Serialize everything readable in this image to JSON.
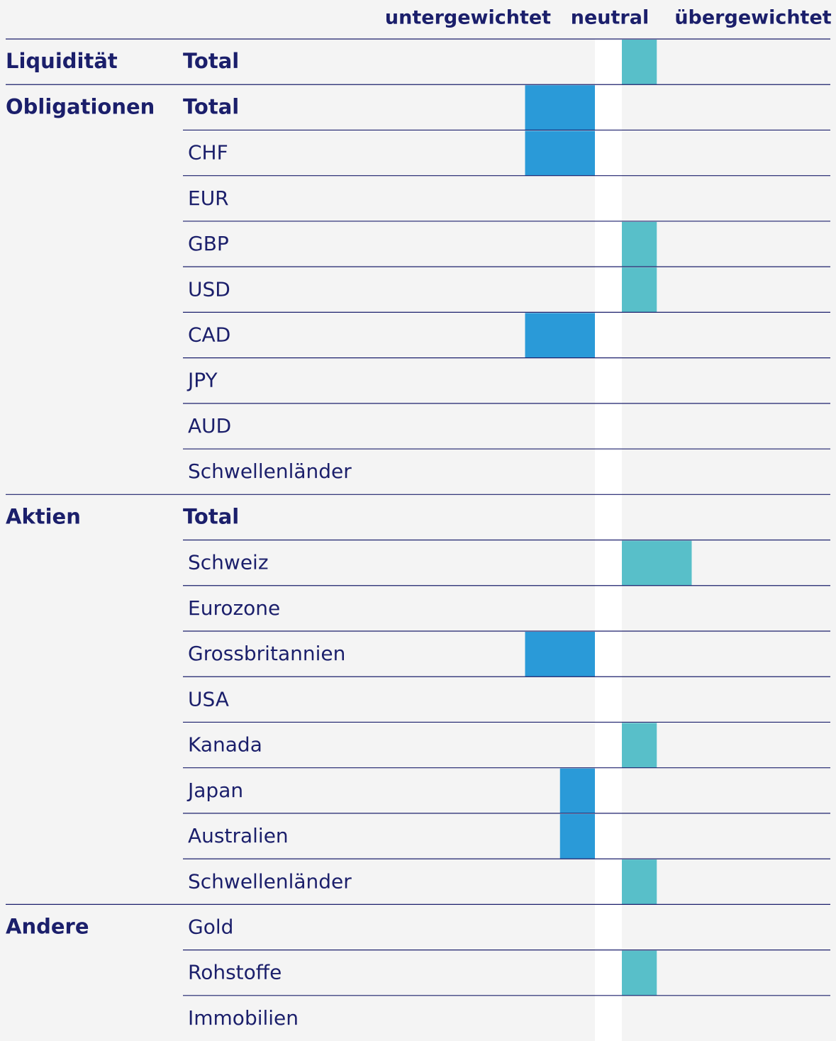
{
  "chart_data": {
    "type": "positioning",
    "columns": [
      "untergewichtet",
      "neutral",
      "übergewichtet"
    ],
    "xlim": [
      -2,
      2
    ],
    "negative_color": "#2a9ad8",
    "positive_color": "#58bfc9",
    "groups": [
      {
        "name": "Liquidität",
        "rows": [
          {
            "label": "Total",
            "value": 1
          }
        ]
      },
      {
        "name": "Obligationen",
        "rows": [
          {
            "label": "Total",
            "value": -2
          },
          {
            "label": "CHF",
            "value": -2
          },
          {
            "label": "EUR",
            "value": 0
          },
          {
            "label": "GBP",
            "value": 1
          },
          {
            "label": "USD",
            "value": 1
          },
          {
            "label": "CAD",
            "value": -2
          },
          {
            "label": "JPY",
            "value": 0
          },
          {
            "label": "AUD",
            "value": 0
          },
          {
            "label": "Schwellenländer",
            "value": 0
          }
        ]
      },
      {
        "name": "Aktien",
        "rows": [
          {
            "label": "Total",
            "value": 0
          },
          {
            "label": "Schweiz",
            "value": 2
          },
          {
            "label": "Eurozone",
            "value": 0
          },
          {
            "label": "Grossbritannien",
            "value": -2
          },
          {
            "label": "USA",
            "value": 0
          },
          {
            "label": "Kanada",
            "value": 1
          },
          {
            "label": "Japan",
            "value": -1
          },
          {
            "label": "Australien",
            "value": -1
          },
          {
            "label": "Schwellenländer",
            "value": 1
          }
        ]
      },
      {
        "name": "Andere",
        "rows": [
          {
            "label": "Gold",
            "value": 0
          },
          {
            "label": "Rohstoffe",
            "value": 1
          },
          {
            "label": "Immobilien",
            "value": 0
          }
        ]
      }
    ]
  }
}
